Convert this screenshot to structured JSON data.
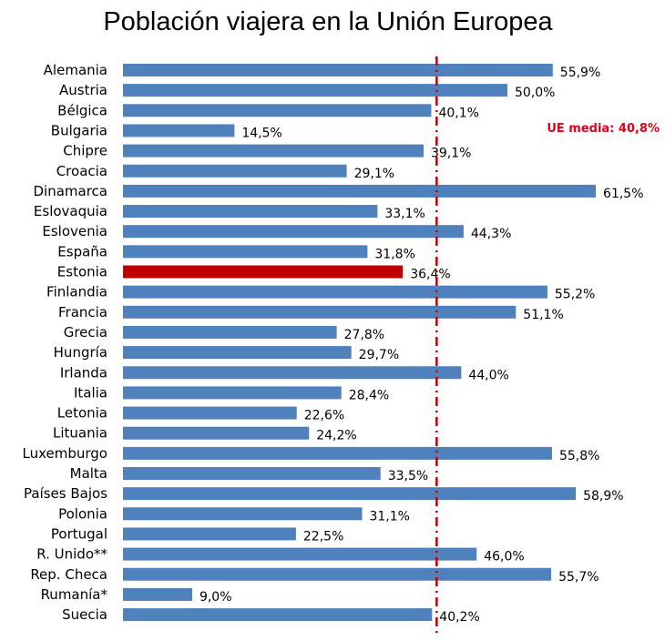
{
  "chart_data": {
    "type": "bar",
    "orientation": "horizontal",
    "title": "Población viajera en la Unión Europea",
    "xlabel": "",
    "ylabel": "",
    "xlim": [
      0,
      70
    ],
    "grid": false,
    "categories": [
      "Alemania",
      "Austria",
      "Bélgica",
      "Bulgaria",
      "Chipre",
      "Croacia",
      "Dinamarca",
      "Eslovaquia",
      "Eslovenia",
      "España",
      "Estonia",
      "Finlandia",
      "Francia",
      "Grecia",
      "Hungría",
      "Irlanda",
      "Italia",
      "Letonia",
      "Lituania",
      "Luxemburgo",
      "Malta",
      "Países Bajos",
      "Polonia",
      "Portugal",
      "R. Unido**",
      "Rep. Checa",
      "Rumanía*",
      "Suecia"
    ],
    "values": [
      55.9,
      50.0,
      40.1,
      14.5,
      39.1,
      29.1,
      61.5,
      33.1,
      44.3,
      31.8,
      36.4,
      55.2,
      51.1,
      27.8,
      29.7,
      44.0,
      28.4,
      22.6,
      24.2,
      55.8,
      33.5,
      58.9,
      31.1,
      22.5,
      46.0,
      55.7,
      9.0,
      40.2
    ],
    "labels": [
      "55,9%",
      "50,0%",
      "40,1%",
      "14,5%",
      "39,1%",
      "29,1%",
      "61,5%",
      "33,1%",
      "44,3%",
      "31,8%",
      "36,4%",
      "55,2%",
      "51,1%",
      "27,8%",
      "29,7%",
      "44,0%",
      "28,4%",
      "22,6%",
      "24,2%",
      "55,8%",
      "33,5%",
      "58,9%",
      "31,1%",
      "22,5%",
      "46,0%",
      "55,7%",
      "9,0%",
      "40,2%"
    ],
    "highlight": "Estonia",
    "reference_line": {
      "value": 40.8,
      "label": "UE media: 40,8%"
    },
    "colors": {
      "bar": "#4f81bd",
      "highlight": "#c00000",
      "reference": "#c00000",
      "reference_label": "#e0001b"
    }
  }
}
